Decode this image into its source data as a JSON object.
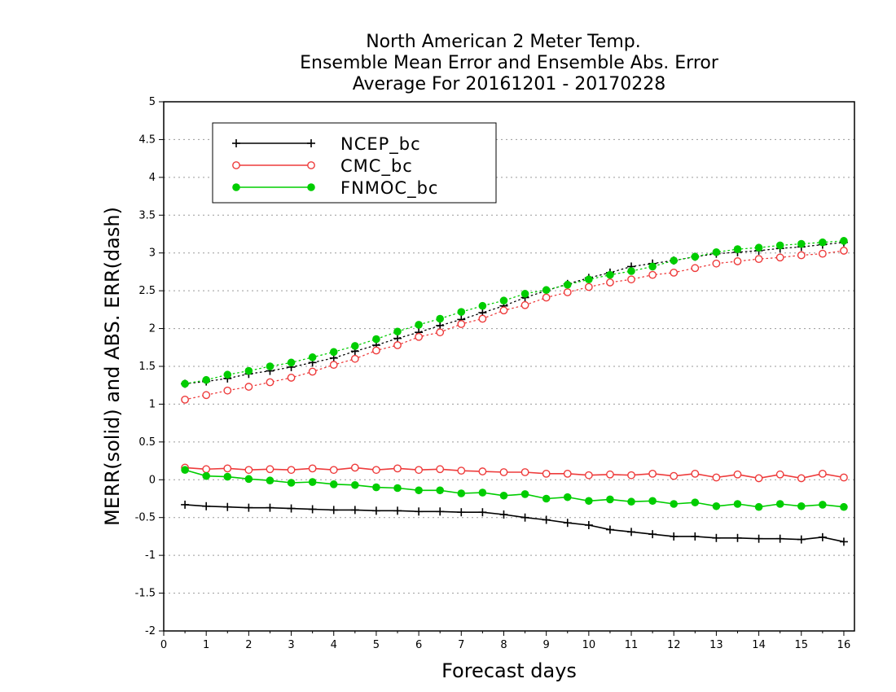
{
  "chart_data": {
    "type": "line",
    "title_lines": [
      "North American 2 Meter Temp.",
      "Ensemble Mean Error and Ensemble Abs. Error",
      "Average For 20161201 - 20170228"
    ],
    "xlabel": "Forecast days",
    "ylabel": "MERR(solid) and ABS. ERR(dash)",
    "xlim": [
      0,
      16.25
    ],
    "ylim": [
      -2,
      5
    ],
    "x_ticks": [
      0,
      1,
      2,
      3,
      4,
      5,
      6,
      7,
      8,
      9,
      10,
      11,
      12,
      13,
      14,
      15,
      16
    ],
    "x_tick_labels": [
      "0",
      "1",
      "2",
      "3",
      "4",
      "5",
      "6",
      "7",
      "8",
      "9",
      "10",
      "11",
      "12",
      "13",
      "14",
      "15",
      "16"
    ],
    "y_ticks": [
      -2,
      -1.5,
      -1,
      -0.5,
      0,
      0.5,
      1,
      1.5,
      2,
      2.5,
      3,
      3.5,
      4,
      4.5,
      5
    ],
    "y_tick_labels": [
      "-2",
      "-1.5",
      "-1",
      "-0.5",
      "0",
      "0.5",
      "1",
      "1.5",
      "2",
      "2.5",
      "3",
      "3.5",
      "4",
      "4.5",
      "5"
    ],
    "grid": true,
    "legend_position": "top-left",
    "x": [
      0.5,
      1,
      1.5,
      2,
      2.5,
      3,
      3.5,
      4,
      4.5,
      5,
      5.5,
      6,
      6.5,
      7,
      7.5,
      8,
      8.5,
      9,
      9.5,
      10,
      10.5,
      11,
      11.5,
      12,
      12.5,
      13,
      13.5,
      14,
      14.5,
      15,
      15.5,
      16
    ],
    "series": [
      {
        "name": "NCEP_bc",
        "color": "#000000",
        "marker": "plus",
        "merr": [
          -0.33,
          -0.35,
          -0.36,
          -0.37,
          -0.37,
          -0.38,
          -0.39,
          -0.4,
          -0.4,
          -0.41,
          -0.41,
          -0.42,
          -0.42,
          -0.43,
          -0.43,
          -0.46,
          -0.5,
          -0.53,
          -0.57,
          -0.6,
          -0.66,
          -0.69,
          -0.72,
          -0.75,
          -0.75,
          -0.77,
          -0.77,
          -0.78,
          -0.78,
          -0.79,
          -0.76,
          -0.82
        ],
        "abs_err": [
          1.27,
          1.3,
          1.34,
          1.4,
          1.44,
          1.49,
          1.55,
          1.61,
          1.7,
          1.78,
          1.87,
          1.95,
          2.04,
          2.12,
          2.21,
          2.3,
          2.41,
          2.5,
          2.59,
          2.67,
          2.74,
          2.82,
          2.86,
          2.9,
          2.95,
          2.99,
          3.01,
          3.03,
          3.06,
          3.08,
          3.11,
          3.14
        ]
      },
      {
        "name": "CMC_bc",
        "color": "#ee3b3b",
        "marker": "open-circle",
        "merr": [
          0.16,
          0.14,
          0.15,
          0.13,
          0.14,
          0.13,
          0.15,
          0.13,
          0.16,
          0.13,
          0.15,
          0.13,
          0.14,
          0.12,
          0.11,
          0.1,
          0.1,
          0.08,
          0.08,
          0.06,
          0.07,
          0.06,
          0.08,
          0.05,
          0.08,
          0.03,
          0.07,
          0.02,
          0.07,
          0.02,
          0.08,
          0.03
        ],
        "abs_err": [
          1.06,
          1.12,
          1.18,
          1.23,
          1.29,
          1.35,
          1.43,
          1.52,
          1.6,
          1.71,
          1.78,
          1.89,
          1.95,
          2.06,
          2.13,
          2.24,
          2.31,
          2.41,
          2.48,
          2.55,
          2.61,
          2.65,
          2.71,
          2.74,
          2.8,
          2.86,
          2.89,
          2.92,
          2.94,
          2.97,
          2.99,
          3.03
        ]
      },
      {
        "name": "FNMOC_bc",
        "color": "#00cd00",
        "marker": "filled-circle",
        "merr": [
          0.13,
          0.05,
          0.04,
          0.01,
          -0.01,
          -0.04,
          -0.03,
          -0.06,
          -0.07,
          -0.1,
          -0.11,
          -0.14,
          -0.14,
          -0.18,
          -0.17,
          -0.21,
          -0.19,
          -0.25,
          -0.23,
          -0.28,
          -0.26,
          -0.29,
          -0.28,
          -0.32,
          -0.3,
          -0.35,
          -0.32,
          -0.36,
          -0.32,
          -0.35,
          -0.33,
          -0.36
        ],
        "abs_err": [
          1.27,
          1.32,
          1.39,
          1.44,
          1.5,
          1.55,
          1.62,
          1.69,
          1.77,
          1.86,
          1.96,
          2.05,
          2.13,
          2.22,
          2.3,
          2.37,
          2.46,
          2.51,
          2.58,
          2.65,
          2.71,
          2.76,
          2.82,
          2.9,
          2.95,
          3.01,
          3.05,
          3.07,
          3.1,
          3.12,
          3.14,
          3.16
        ]
      }
    ]
  }
}
